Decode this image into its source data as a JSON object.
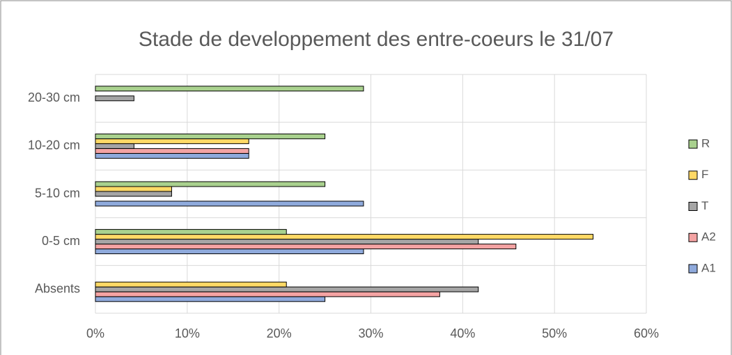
{
  "chart_data": {
    "type": "barh",
    "title": "Stade de developpement des entre-coeurs le 31/07",
    "categories": [
      "Absents",
      "0-5 cm",
      "5-10 cm",
      "10-20 cm",
      "20-30 cm"
    ],
    "series": [
      {
        "name": "A1",
        "color": "#8faadc",
        "values": [
          25,
          29.2,
          29.2,
          16.7,
          0
        ]
      },
      {
        "name": "A2",
        "color": "#f4a3a3",
        "values": [
          37.5,
          45.8,
          0,
          16.7,
          0
        ]
      },
      {
        "name": "T",
        "color": "#a5a5a5",
        "values": [
          41.7,
          41.7,
          8.3,
          4.2,
          4.2
        ]
      },
      {
        "name": "F",
        "color": "#ffd966",
        "values": [
          20.8,
          54.2,
          8.3,
          16.7,
          0
        ]
      },
      {
        "name": "R",
        "color": "#a9d18e",
        "values": [
          0,
          20.8,
          25,
          25,
          29.2
        ]
      }
    ],
    "xlim": [
      0,
      60
    ],
    "xticks": [
      {
        "value": 0,
        "label": "0%"
      },
      {
        "value": 10,
        "label": "10%"
      },
      {
        "value": 20,
        "label": "20%"
      },
      {
        "value": 30,
        "label": "30%"
      },
      {
        "value": 40,
        "label": "40%"
      },
      {
        "value": 50,
        "label": "50%"
      },
      {
        "value": 60,
        "label": "60%"
      }
    ],
    "grid": true,
    "legend": "right"
  }
}
